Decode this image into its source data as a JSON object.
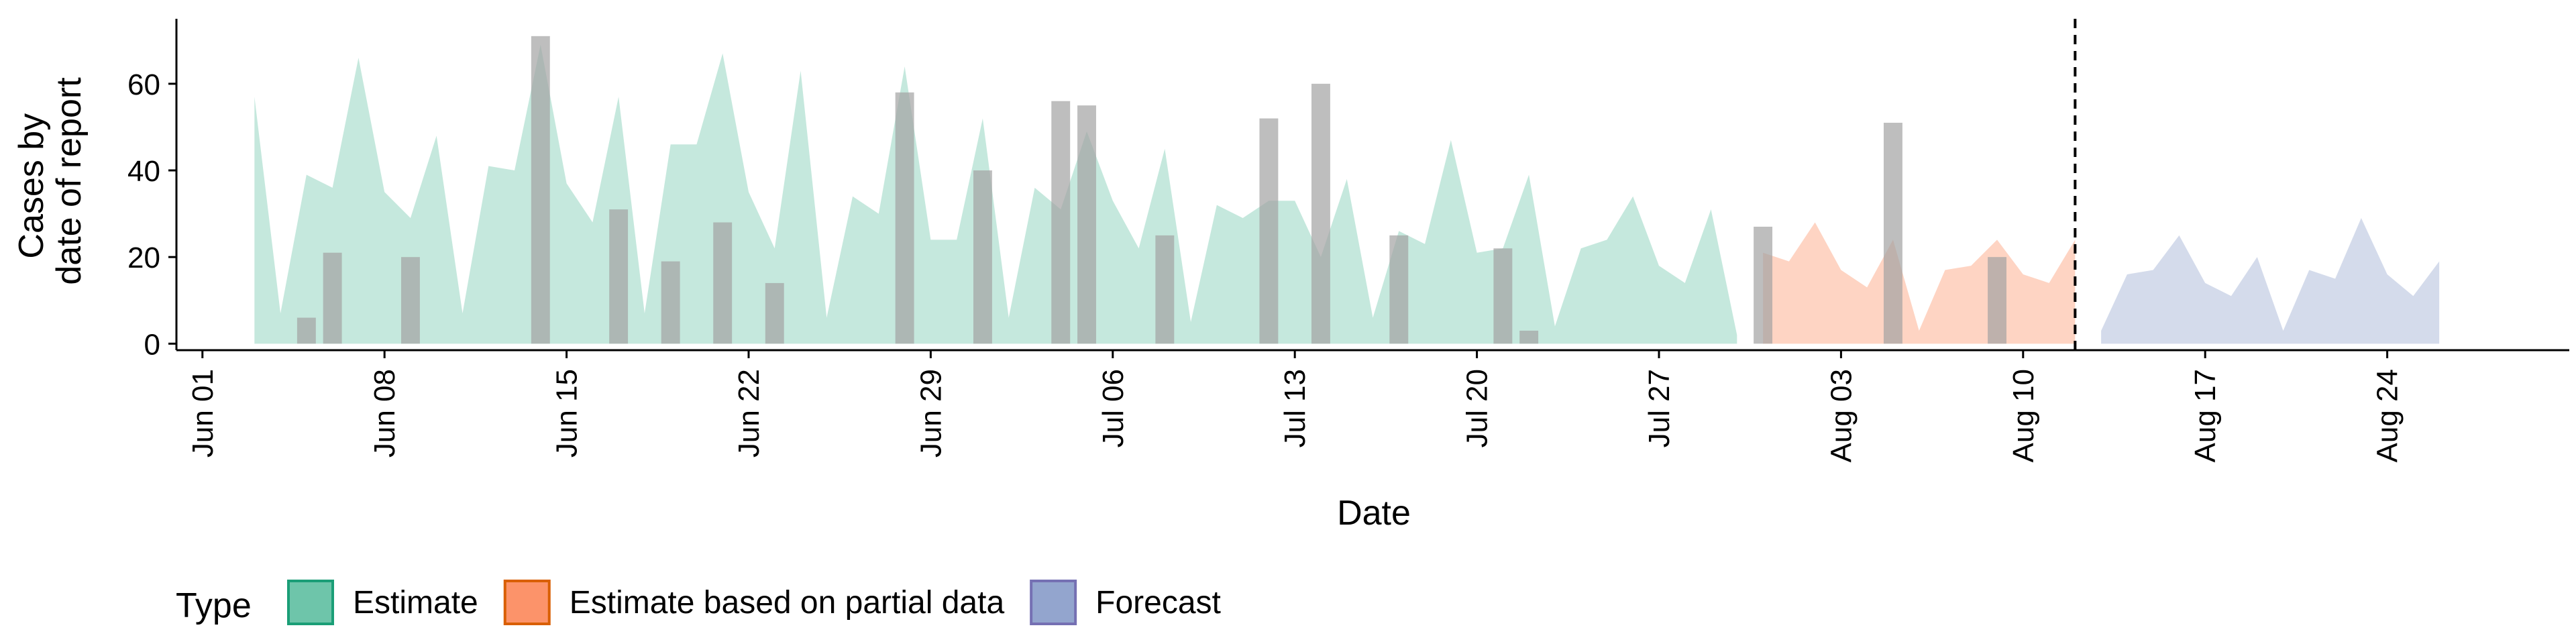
{
  "chart_data": {
    "type": "area",
    "xlabel": "Date",
    "ylabel_lines": [
      "Cases by",
      "date of report"
    ],
    "x_start_date": "2020-05-31",
    "x_range": [
      "2020-05-31",
      "2020-08-31"
    ],
    "ylim": [
      -1.5,
      75
    ],
    "yticks": [
      0,
      20,
      40,
      60
    ],
    "xticks": [
      {
        "date": "2020-06-01",
        "label": "Jun 01"
      },
      {
        "date": "2020-06-08",
        "label": "Jun 08"
      },
      {
        "date": "2020-06-15",
        "label": "Jun 15"
      },
      {
        "date": "2020-06-22",
        "label": "Jun 22"
      },
      {
        "date": "2020-06-29",
        "label": "Jun 29"
      },
      {
        "date": "2020-07-06",
        "label": "Jul 06"
      },
      {
        "date": "2020-07-13",
        "label": "Jul 13"
      },
      {
        "date": "2020-07-20",
        "label": "Jul 20"
      },
      {
        "date": "2020-07-27",
        "label": "Jul 27"
      },
      {
        "date": "2020-08-03",
        "label": "Aug 03"
      },
      {
        "date": "2020-08-10",
        "label": "Aug 10"
      },
      {
        "date": "2020-08-17",
        "label": "Aug 17"
      },
      {
        "date": "2020-08-24",
        "label": "Aug 24"
      }
    ],
    "vline_date": "2020-08-12",
    "grid": false,
    "legend": {
      "position": "bottom",
      "title": "Type"
    },
    "series": [
      {
        "name": "Estimate",
        "fill": "#66c2a5",
        "border": "#1b9e77",
        "opacity": 0.38,
        "start_date": "2020-06-03",
        "values": [
          57,
          7,
          39,
          36,
          66,
          35,
          29,
          48,
          7,
          41,
          40,
          69,
          37,
          28,
          57,
          7,
          46,
          46,
          67,
          35,
          22,
          63,
          6,
          34,
          30,
          64,
          24,
          24,
          52,
          6,
          36,
          31,
          49,
          33,
          22,
          45,
          5,
          32,
          29,
          33,
          33,
          20,
          38,
          6,
          26,
          23,
          47,
          21,
          22,
          39,
          4,
          22,
          24,
          34,
          18,
          14,
          31,
          2
        ]
      },
      {
        "name": "Estimate based on partial data",
        "fill": "#fc8d62",
        "border": "#d95f02",
        "opacity": 0.38,
        "start_date": "2020-07-31",
        "values": [
          21,
          19,
          28,
          17,
          13,
          24,
          3,
          17,
          18,
          24,
          16,
          14,
          24
        ]
      },
      {
        "name": "Forecast",
        "fill": "#8da0cb",
        "border": "#7570b3",
        "opacity": 0.38,
        "start_date": "2020-08-13",
        "values": [
          3,
          16,
          17,
          25,
          14,
          11,
          20,
          3,
          17,
          15,
          29,
          16,
          11,
          19
        ]
      }
    ],
    "observed_bars": {
      "color": "#a3a3a3",
      "opacity": 0.7,
      "points": [
        {
          "date": "2020-06-05",
          "value": 6
        },
        {
          "date": "2020-06-06",
          "value": 21
        },
        {
          "date": "2020-06-09",
          "value": 20
        },
        {
          "date": "2020-06-14",
          "value": 71
        },
        {
          "date": "2020-06-17",
          "value": 31
        },
        {
          "date": "2020-06-19",
          "value": 19
        },
        {
          "date": "2020-06-21",
          "value": 28
        },
        {
          "date": "2020-06-23",
          "value": 14
        },
        {
          "date": "2020-06-28",
          "value": 58
        },
        {
          "date": "2020-07-01",
          "value": 40
        },
        {
          "date": "2020-07-04",
          "value": 56
        },
        {
          "date": "2020-07-05",
          "value": 55
        },
        {
          "date": "2020-07-08",
          "value": 25
        },
        {
          "date": "2020-07-12",
          "value": 52
        },
        {
          "date": "2020-07-14",
          "value": 60
        },
        {
          "date": "2020-07-17",
          "value": 25
        },
        {
          "date": "2020-07-21",
          "value": 22
        },
        {
          "date": "2020-07-22",
          "value": 3
        },
        {
          "date": "2020-07-31",
          "value": 27
        },
        {
          "date": "2020-08-05",
          "value": 51
        },
        {
          "date": "2020-08-09",
          "value": 20
        }
      ]
    }
  }
}
